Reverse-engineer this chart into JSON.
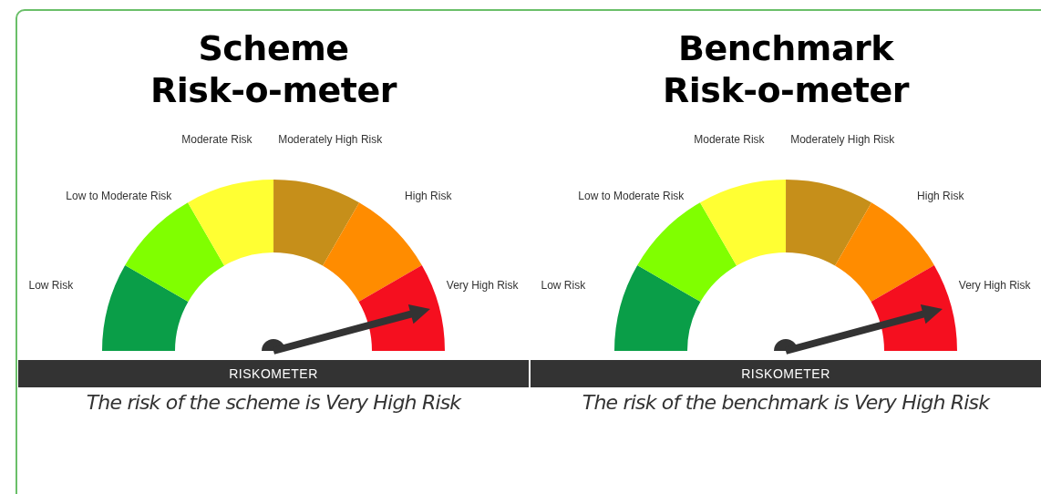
{
  "chart_data": [
    {
      "type": "donut",
      "title": "Scheme\nRisk-o-meter",
      "categories": [
        "Low Risk",
        "Low to Moderate Risk",
        "Moderate Risk",
        "Moderately High Risk",
        "High Risk",
        "Very High Risk"
      ],
      "values": [
        16.67,
        16.67,
        16.67,
        16.67,
        16.66,
        16.66
      ],
      "colors": [
        "#0a9e48",
        "#80ff00",
        "#ffff33",
        "#c68f1a",
        "#ff8c00",
        "#f50f1f"
      ],
      "needle": "Very High Risk",
      "legend": false,
      "annotations": [
        "RISKOMETER",
        "The risk of the scheme is Very High Risk"
      ]
    },
    {
      "type": "donut",
      "title": "Benchmark\nRisk-o-meter",
      "categories": [
        "Low Risk",
        "Low to Moderate Risk",
        "Moderate Risk",
        "Moderately High Risk",
        "High Risk",
        "Very High Risk"
      ],
      "values": [
        16.67,
        16.67,
        16.67,
        16.67,
        16.66,
        16.66
      ],
      "colors": [
        "#0a9e48",
        "#80ff00",
        "#ffff33",
        "#c68f1a",
        "#ff8c00",
        "#f50f1f"
      ],
      "needle": "Very High Risk",
      "legend": false,
      "annotations": [
        "RISKOMETER",
        "The risk of the benchmark is Very High Risk"
      ]
    }
  ]
}
